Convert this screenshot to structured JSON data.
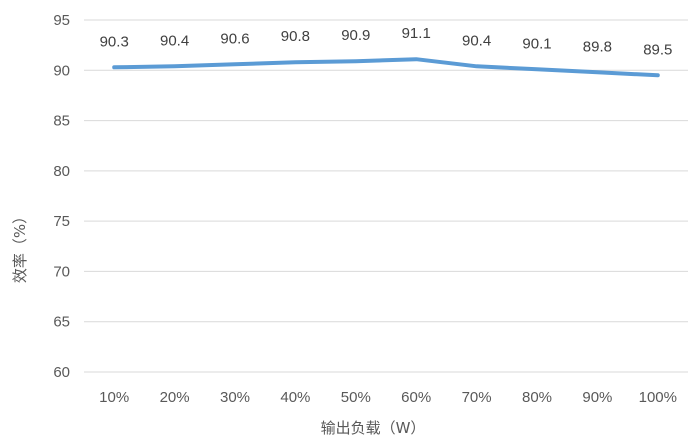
{
  "chart_data": {
    "type": "line",
    "title": "",
    "xlabel": "输出负载（W）",
    "ylabel": "效率（%）",
    "categories": [
      "10%",
      "20%",
      "30%",
      "40%",
      "50%",
      "60%",
      "70%",
      "80%",
      "90%",
      "100%"
    ],
    "values": [
      90.3,
      90.4,
      90.6,
      90.8,
      90.9,
      91.1,
      90.4,
      90.1,
      89.8,
      89.5
    ],
    "data_labels": [
      "90.3",
      "90.4",
      "90.6",
      "90.8",
      "90.9",
      "91.1",
      "90.4",
      "90.1",
      "89.8",
      "89.5"
    ],
    "ylim": [
      60,
      95
    ],
    "yticks": [
      "60",
      "65",
      "70",
      "75",
      "80",
      "85",
      "90",
      "95"
    ],
    "grid": true,
    "legend": "none",
    "colors": {
      "line": "#5b9bd5",
      "grid": "#d9d9d9",
      "text": "#595959"
    }
  }
}
